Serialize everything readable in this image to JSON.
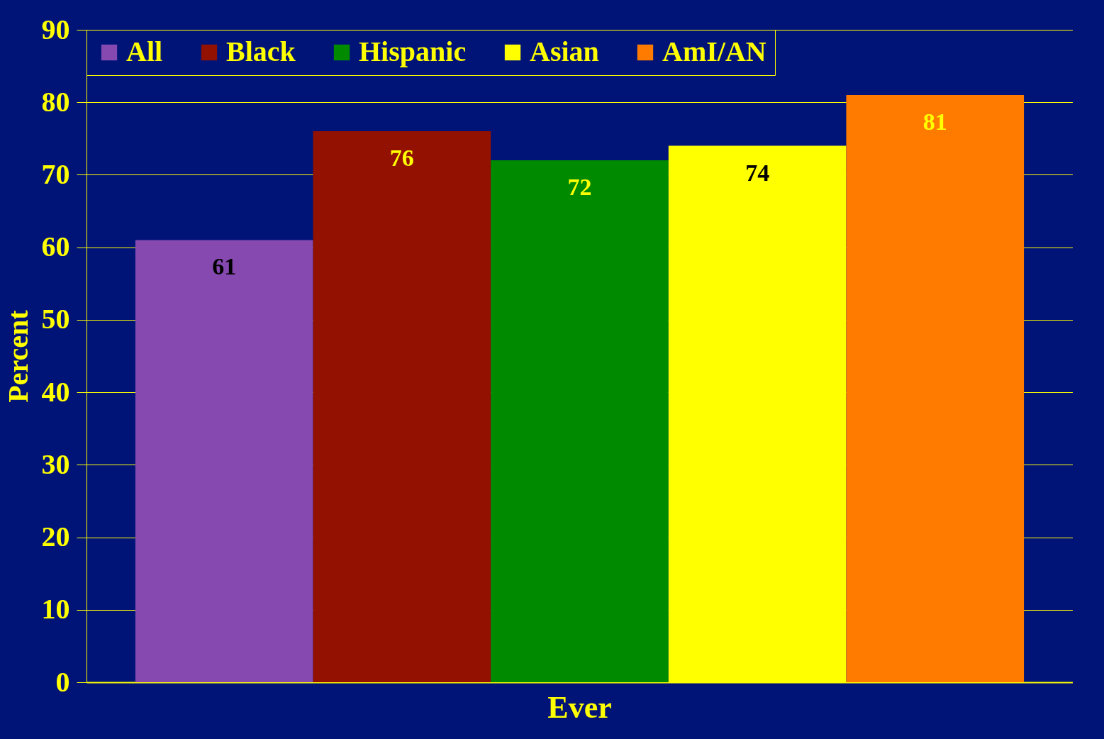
{
  "chart_data": {
    "type": "bar",
    "ylabel": "Percent",
    "categories": [
      "Ever"
    ],
    "series": [
      {
        "name": "All",
        "color": "#8549b0",
        "values": [
          61
        ]
      },
      {
        "name": "Black",
        "color": "#931100",
        "values": [
          76
        ]
      },
      {
        "name": "Hispanic",
        "color": "#008a00",
        "values": [
          72
        ]
      },
      {
        "name": "Asian",
        "color": "#ffff00",
        "values": [
          74
        ]
      },
      {
        "name": "AmI/AN",
        "color": "#ff7b00",
        "values": [
          81
        ]
      }
    ],
    "ylim": [
      0,
      90
    ],
    "yticks": [
      0,
      10,
      20,
      30,
      40,
      50,
      60,
      70,
      80,
      90
    ],
    "grid": "y",
    "legend": "top",
    "data_labels": true
  }
}
